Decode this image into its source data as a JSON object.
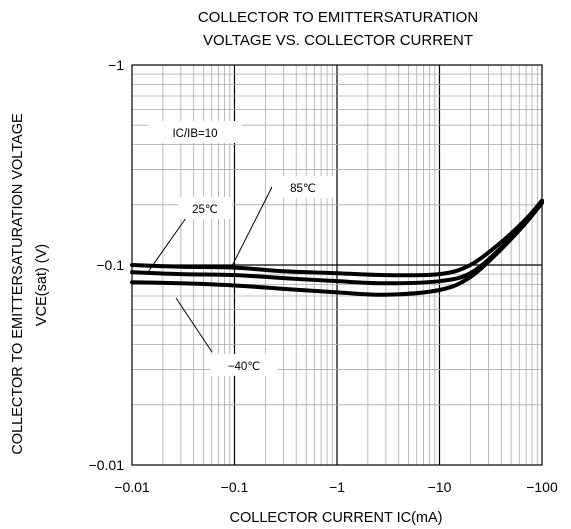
{
  "chart_data": {
    "type": "line",
    "title_lines": [
      "COLLECTOR TO EMITTERSATURATION",
      "VOLTAGE VS. COLLECTOR CURRENT"
    ],
    "xlabel": "COLLECTOR CURRENT  IC(mA)",
    "ylabel_lines": [
      "COLLECTOR TO EMITTERSATURATION VOLTAGE",
      "VCE(sat)  (V)"
    ],
    "x_scale": "log",
    "y_scale": "log",
    "x_ticks": [
      {
        "value": 0.01,
        "label": "−0.01"
      },
      {
        "value": 0.1,
        "label": "−0.1"
      },
      {
        "value": 1,
        "label": "−1"
      },
      {
        "value": 10,
        "label": "−10"
      },
      {
        "value": 100,
        "label": "−100"
      }
    ],
    "y_ticks": [
      {
        "value": 0.01,
        "label": "−0.01"
      },
      {
        "value": 0.1,
        "label": "−0.1"
      },
      {
        "value": 1,
        "label": "−1"
      }
    ],
    "xlim": [
      0.01,
      100
    ],
    "ylim": [
      0.01,
      1
    ],
    "grid": true,
    "condition": "IC/IB=10",
    "series": [
      {
        "name": "85℃",
        "x": [
          0.01,
          0.03,
          0.1,
          0.3,
          1,
          3,
          10,
          20,
          40,
          70,
          100
        ],
        "y": [
          0.1,
          0.098,
          0.097,
          0.093,
          0.091,
          0.089,
          0.09,
          0.1,
          0.13,
          0.17,
          0.21
        ]
      },
      {
        "name": "25℃",
        "x": [
          0.01,
          0.03,
          0.1,
          0.3,
          1,
          3,
          10,
          20,
          40,
          70,
          100
        ],
        "y": [
          0.092,
          0.09,
          0.089,
          0.086,
          0.083,
          0.081,
          0.083,
          0.091,
          0.122,
          0.165,
          0.206
        ]
      },
      {
        "name": "−40℃",
        "x": [
          0.01,
          0.03,
          0.1,
          0.3,
          1,
          3,
          10,
          20,
          40,
          70,
          100
        ],
        "y": [
          0.082,
          0.081,
          0.079,
          0.076,
          0.073,
          0.071,
          0.075,
          0.087,
          0.12,
          0.163,
          0.204
        ]
      }
    ]
  }
}
